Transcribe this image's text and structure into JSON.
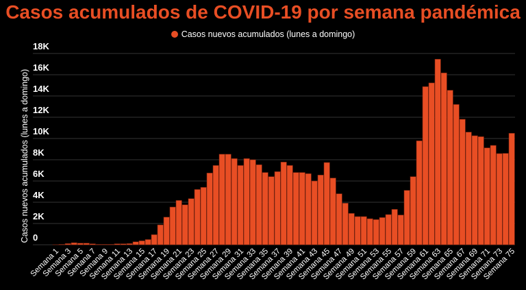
{
  "chart_data": {
    "type": "bar",
    "title": "Casos acumulados de COVID-19 por semana pandémica",
    "ylabel": "Casos nuevos acumulados (lunes a domingo)",
    "xlabel": "",
    "ylim": [
      0,
      18000
    ],
    "yticks": [
      0,
      2000,
      4000,
      6000,
      8000,
      10000,
      12000,
      14000,
      16000,
      18000
    ],
    "ytick_labels": [
      "0",
      "2K",
      "4K",
      "6K",
      "8K",
      "10K",
      "12K",
      "14K",
      "16K",
      "18K"
    ],
    "grid": true,
    "legend_position": "top",
    "colors": {
      "bar": "#e84e24",
      "title": "#e84e24",
      "background": "#000000",
      "grid": "#333333"
    },
    "series": [
      {
        "name": "Casos nuevos acumulados (lunes a domingo)",
        "values": [
          10,
          40,
          110,
          190,
          150,
          150,
          90,
          40,
          40,
          40,
          90,
          90,
          110,
          280,
          370,
          490,
          950,
          1870,
          2600,
          3550,
          4170,
          3760,
          4340,
          5200,
          5400,
          6750,
          7460,
          8520,
          8520,
          8110,
          7460,
          8110,
          8000,
          7530,
          6800,
          6410,
          6880,
          7780,
          7460,
          6800,
          6800,
          6690,
          6000,
          6560,
          7740,
          6280,
          4800,
          3910,
          2950,
          2650,
          2650,
          2450,
          2370,
          2560,
          2840,
          3330,
          2800,
          5120,
          6410,
          9780,
          14880,
          15230,
          17460,
          16170,
          14540,
          13200,
          11810,
          10600,
          10260,
          10170,
          9120,
          9350,
          8580,
          8600,
          10490
        ]
      }
    ],
    "category_prefix": "Semana",
    "categories": [
      "Semana 1",
      "Semana 2",
      "Semana 3",
      "Semana 4",
      "Semana 5",
      "Semana 6",
      "Semana 7",
      "Semana 8",
      "Semana 9",
      "Semana 10",
      "Semana 11",
      "Semana 12",
      "Semana 13",
      "Semana 14",
      "Semana 15",
      "Semana 16",
      "Semana 17",
      "Semana 18",
      "Semana 19",
      "Semana 20",
      "Semana 21",
      "Semana 22",
      "Semana 23",
      "Semana 24",
      "Semana 25",
      "Semana 26",
      "Semana 27",
      "Semana 28",
      "Semana 29",
      "Semana 30",
      "Semana 31",
      "Semana 32",
      "Semana 33",
      "Semana 34",
      "Semana 35",
      "Semana 36",
      "Semana 37",
      "Semana 38",
      "Semana 39",
      "Semana 40",
      "Semana 41",
      "Semana 42",
      "Semana 43",
      "Semana 44",
      "Semana 45",
      "Semana 46",
      "Semana 47",
      "Semana 48",
      "Semana 49",
      "Semana 50",
      "Semana 51",
      "Semana 52",
      "Semana 53",
      "Semana 54",
      "Semana 55",
      "Semana 56",
      "Semana 57",
      "Semana 58",
      "Semana 59",
      "Semana 60",
      "Semana 61",
      "Semana 62",
      "Semana 63",
      "Semana 64",
      "Semana 65",
      "Semana 66",
      "Semana 67",
      "Semana 68",
      "Semana 69",
      "Semana 70",
      "Semana 71",
      "Semana 72",
      "Semana 73",
      "Semana 74",
      "Semana 75"
    ],
    "label_every": 2
  }
}
